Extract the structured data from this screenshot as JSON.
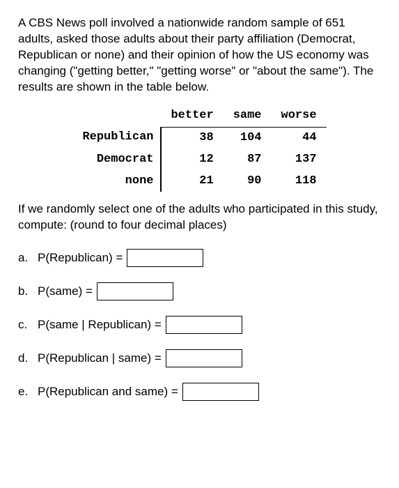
{
  "intro": "A CBS News poll involved a nationwide random sample of 651 adults, asked those adults about their party affiliation (Democrat, Republican or none) and their opinion of how the US economy was changing (\"getting better,\" \"getting worse\" or \"about the same\"). The results are shown in the table below.",
  "table": {
    "headers": {
      "c1": "better",
      "c2": "same",
      "c3": "worse"
    },
    "rows": [
      {
        "label": "Republican",
        "c1": "38",
        "c2": "104",
        "c3": "44"
      },
      {
        "label": "Democrat",
        "c1": "12",
        "c2": "87",
        "c3": "137"
      },
      {
        "label": "none",
        "c1": "21",
        "c2": "90",
        "c3": "118"
      }
    ]
  },
  "prompt2": "If we randomly select one of the adults who participated in this study, compute: (round to four decimal places)",
  "questions": {
    "a": {
      "letter": "a.",
      "label": "P(Republican) ="
    },
    "b": {
      "letter": "b.",
      "label": "P(same) ="
    },
    "c": {
      "letter": "c.",
      "label": "P(same | Republican) ="
    },
    "d": {
      "letter": "d.",
      "label": "P(Republican | same) ="
    },
    "e": {
      "letter": "e.",
      "label": "P(Republican and same) ="
    }
  }
}
